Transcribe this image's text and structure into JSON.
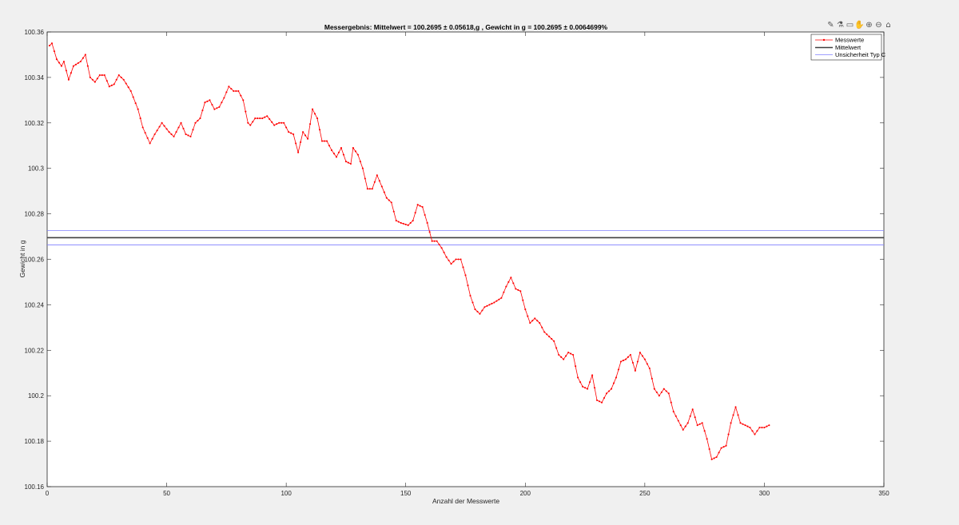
{
  "toolbar": {
    "icons": [
      "brush-icon",
      "datatip-icon",
      "restore-icon",
      "pan-icon",
      "zoom-in-icon",
      "zoom-out-icon",
      "home-icon"
    ],
    "glyphs": [
      "✎",
      "⚗",
      "▭",
      "✋",
      "⊕",
      "⊖",
      "⌂"
    ]
  },
  "chart_data": {
    "type": "line",
    "title": "Messergebnis: Mittelwert = 100.2695 ± 0.05618,g , Gewicht in g = 100.2695 ± 0.0064699%",
    "xlabel": "Anzahl der Messwerte",
    "ylabel": "Gewicht in g",
    "xlim": [
      0,
      350
    ],
    "ylim": [
      100.16,
      100.36
    ],
    "xticks": [
      0,
      50,
      100,
      150,
      200,
      250,
      300,
      350
    ],
    "xtick_labels": [
      "0",
      "50",
      "100",
      "150",
      "200",
      "250",
      "300",
      "350"
    ],
    "yticks": [
      100.16,
      100.18,
      100.2,
      100.22,
      100.24,
      100.26,
      100.28,
      100.3,
      100.32,
      100.34,
      100.36
    ],
    "ytick_labels": [
      "100.16",
      "100.18",
      "100.2",
      "100.22",
      "100.24",
      "100.26",
      "100.28",
      "100.3",
      "100.32",
      "100.34",
      "100.36"
    ],
    "grid": false,
    "legend_position": "top-right",
    "colors": {
      "messwerte": "#ff0000",
      "mittelwert": "#404040",
      "unsicherheit": "#8080ff"
    },
    "series": [
      {
        "name": "Messwerte",
        "x_start": 1,
        "knots": [
          [
            1,
            100.354
          ],
          [
            2,
            100.355
          ],
          [
            4,
            100.348
          ],
          [
            6,
            100.345
          ],
          [
            7,
            100.347
          ],
          [
            9,
            100.339
          ],
          [
            11,
            100.345
          ],
          [
            14,
            100.347
          ],
          [
            16,
            100.35
          ],
          [
            18,
            100.34
          ],
          [
            20,
            100.338
          ],
          [
            22,
            100.341
          ],
          [
            24,
            100.341
          ],
          [
            26,
            100.336
          ],
          [
            28,
            100.337
          ],
          [
            30,
            100.341
          ],
          [
            32,
            100.339
          ],
          [
            35,
            100.334
          ],
          [
            38,
            100.326
          ],
          [
            40,
            100.318
          ],
          [
            43,
            100.311
          ],
          [
            45,
            100.315
          ],
          [
            48,
            100.32
          ],
          [
            51,
            100.316
          ],
          [
            53,
            100.314
          ],
          [
            56,
            100.32
          ],
          [
            58,
            100.315
          ],
          [
            60,
            100.314
          ],
          [
            62,
            100.32
          ],
          [
            64,
            100.322
          ],
          [
            66,
            100.329
          ],
          [
            68,
            100.33
          ],
          [
            70,
            100.326
          ],
          [
            72,
            100.327
          ],
          [
            74,
            100.331
          ],
          [
            76,
            100.336
          ],
          [
            78,
            100.334
          ],
          [
            80,
            100.334
          ],
          [
            82,
            100.33
          ],
          [
            84,
            100.32
          ],
          [
            85,
            100.319
          ],
          [
            87,
            100.322
          ],
          [
            90,
            100.322
          ],
          [
            92,
            100.323
          ],
          [
            95,
            100.319
          ],
          [
            97,
            100.32
          ],
          [
            99,
            100.32
          ],
          [
            101,
            100.316
          ],
          [
            103,
            100.315
          ],
          [
            105,
            100.307
          ],
          [
            107,
            100.316
          ],
          [
            109,
            100.313
          ],
          [
            111,
            100.326
          ],
          [
            113,
            100.322
          ],
          [
            115,
            100.312
          ],
          [
            117,
            100.312
          ],
          [
            119,
            100.308
          ],
          [
            121,
            100.305
          ],
          [
            123,
            100.309
          ],
          [
            125,
            100.303
          ],
          [
            127,
            100.302
          ],
          [
            128,
            100.309
          ],
          [
            130,
            100.306
          ],
          [
            132,
            100.3
          ],
          [
            134,
            100.291
          ],
          [
            136,
            100.291
          ],
          [
            138,
            100.297
          ],
          [
            140,
            100.292
          ],
          [
            142,
            100.287
          ],
          [
            144,
            100.285
          ],
          [
            146,
            100.277
          ],
          [
            148,
            100.276
          ],
          [
            151,
            100.275
          ],
          [
            153,
            100.277
          ],
          [
            155,
            100.284
          ],
          [
            157,
            100.283
          ],
          [
            159,
            100.276
          ],
          [
            161,
            100.268
          ],
          [
            163,
            100.268
          ],
          [
            165,
            100.265
          ],
          [
            167,
            100.261
          ],
          [
            169,
            100.258
          ],
          [
            171,
            100.26
          ],
          [
            173,
            100.26
          ],
          [
            175,
            100.253
          ],
          [
            177,
            100.244
          ],
          [
            179,
            100.238
          ],
          [
            181,
            100.236
          ],
          [
            183,
            100.239
          ],
          [
            185,
            100.24
          ],
          [
            187,
            100.241
          ],
          [
            190,
            100.243
          ],
          [
            192,
            100.248
          ],
          [
            194,
            100.252
          ],
          [
            196,
            100.247
          ],
          [
            198,
            100.246
          ],
          [
            200,
            100.238
          ],
          [
            202,
            100.232
          ],
          [
            204,
            100.234
          ],
          [
            206,
            100.232
          ],
          [
            208,
            100.228
          ],
          [
            210,
            100.226
          ],
          [
            212,
            100.224
          ],
          [
            214,
            100.218
          ],
          [
            216,
            100.216
          ],
          [
            218,
            100.219
          ],
          [
            220,
            100.218
          ],
          [
            222,
            100.208
          ],
          [
            224,
            100.204
          ],
          [
            226,
            100.203
          ],
          [
            228,
            100.209
          ],
          [
            230,
            100.198
          ],
          [
            232,
            100.197
          ],
          [
            234,
            100.201
          ],
          [
            236,
            100.203
          ],
          [
            238,
            100.208
          ],
          [
            240,
            100.215
          ],
          [
            242,
            100.216
          ],
          [
            244,
            100.218
          ],
          [
            246,
            100.211
          ],
          [
            248,
            100.219
          ],
          [
            250,
            100.216
          ],
          [
            252,
            100.212
          ],
          [
            254,
            100.203
          ],
          [
            256,
            100.2
          ],
          [
            258,
            100.203
          ],
          [
            260,
            100.201
          ],
          [
            262,
            100.193
          ],
          [
            264,
            100.189
          ],
          [
            266,
            100.185
          ],
          [
            268,
            100.188
          ],
          [
            270,
            100.194
          ],
          [
            272,
            100.187
          ],
          [
            274,
            100.188
          ],
          [
            276,
            100.181
          ],
          [
            278,
            100.172
          ],
          [
            280,
            100.173
          ],
          [
            282,
            100.177
          ],
          [
            284,
            100.178
          ],
          [
            286,
            100.188
          ],
          [
            288,
            100.195
          ],
          [
            290,
            100.188
          ],
          [
            292,
            100.187
          ],
          [
            294,
            100.186
          ],
          [
            296,
            100.183
          ],
          [
            298,
            100.186
          ],
          [
            300,
            100.186
          ],
          [
            302,
            100.187
          ]
        ]
      },
      {
        "name": "Mittelwert",
        "y": 100.2695
      },
      {
        "name": "Unsicherheit Typ C",
        "y_upper": 100.2727,
        "y_lower": 100.2663
      }
    ]
  }
}
